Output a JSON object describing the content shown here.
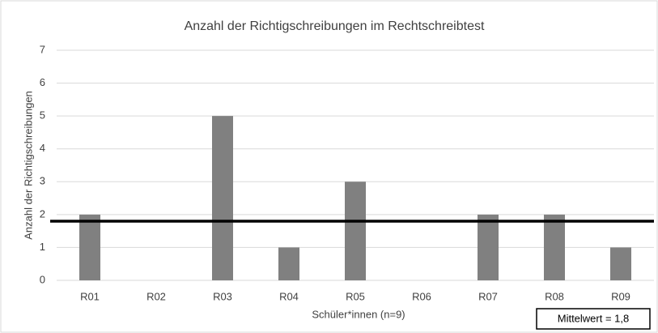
{
  "chart_data": {
    "type": "bar",
    "title": "Anzahl der Richtigschreibungen im Rechtschreibtest",
    "x_label": "Schüler*innen (n=9)",
    "y_label": "Anzahl der Richtigschreibungen",
    "categories": [
      "R01",
      "R02",
      "R03",
      "R04",
      "R05",
      "R06",
      "R07",
      "R08",
      "R09"
    ],
    "values": [
      2,
      0,
      5,
      1,
      3,
      0,
      2,
      2,
      1
    ],
    "color": "#808080",
    "ylim": [
      0,
      7
    ],
    "yticks": [
      0,
      1,
      2,
      3,
      4,
      5,
      6,
      7
    ],
    "grid": true,
    "mean": 1.8,
    "mean_label": "Mittelwert = 1,8"
  }
}
